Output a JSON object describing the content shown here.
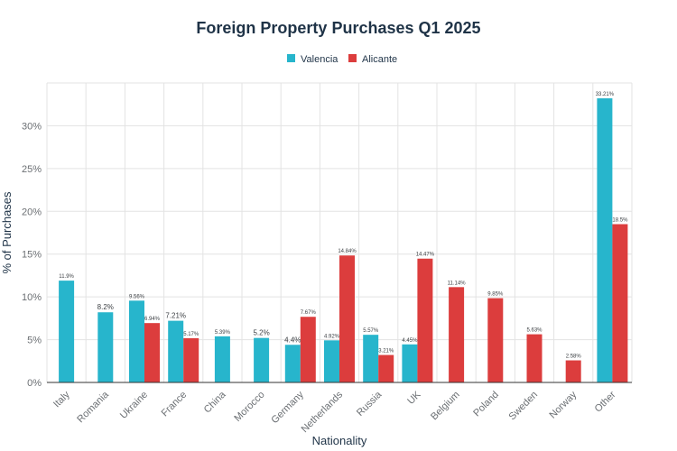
{
  "chart_data": {
    "type": "bar",
    "title": "Foreign Property Purchases Q1 2025",
    "xlabel": "Nationality",
    "ylabel": "% of Purchases",
    "ylim": [
      0,
      35
    ],
    "yticks": [
      0,
      5,
      10,
      15,
      20,
      25,
      30
    ],
    "ytick_labels": [
      "0%",
      "5%",
      "10%",
      "15%",
      "20%",
      "25%",
      "30%"
    ],
    "grid": true,
    "legend_position": "top-center",
    "categories": [
      "Italy",
      "Romania",
      "Ukraine",
      "France",
      "China",
      "Morocco",
      "Germany",
      "Netherlands",
      "Russia",
      "UK",
      "Belgium",
      "Poland",
      "Sweden",
      "Norway",
      "Other"
    ],
    "series": [
      {
        "name": "Valencia",
        "color": "#27b5cc",
        "values": [
          11.9,
          8.2,
          9.56,
          7.21,
          5.39,
          5.2,
          4.4,
          4.92,
          5.57,
          4.45,
          null,
          null,
          null,
          null,
          33.21
        ],
        "labels": [
          "11.9%",
          "8.2%",
          "9.56%",
          "7.21%",
          "5.39%",
          "5.2%",
          "4.4%",
          "4.92%",
          "5.57%",
          "4.45%",
          null,
          null,
          null,
          null,
          "33.21%"
        ]
      },
      {
        "name": "Alicante",
        "color": "#dc3d3d",
        "values": [
          null,
          null,
          6.94,
          5.17,
          null,
          null,
          7.67,
          14.84,
          3.21,
          14.47,
          11.14,
          9.85,
          5.63,
          2.58,
          18.5
        ],
        "labels": [
          null,
          null,
          "6.94%",
          "5.17%",
          null,
          null,
          "7.67%",
          "14.84%",
          "3.21%",
          "14.47%",
          "11.14%",
          "9.85%",
          "5.63%",
          "2.58%",
          "18.5%"
        ]
      }
    ]
  }
}
